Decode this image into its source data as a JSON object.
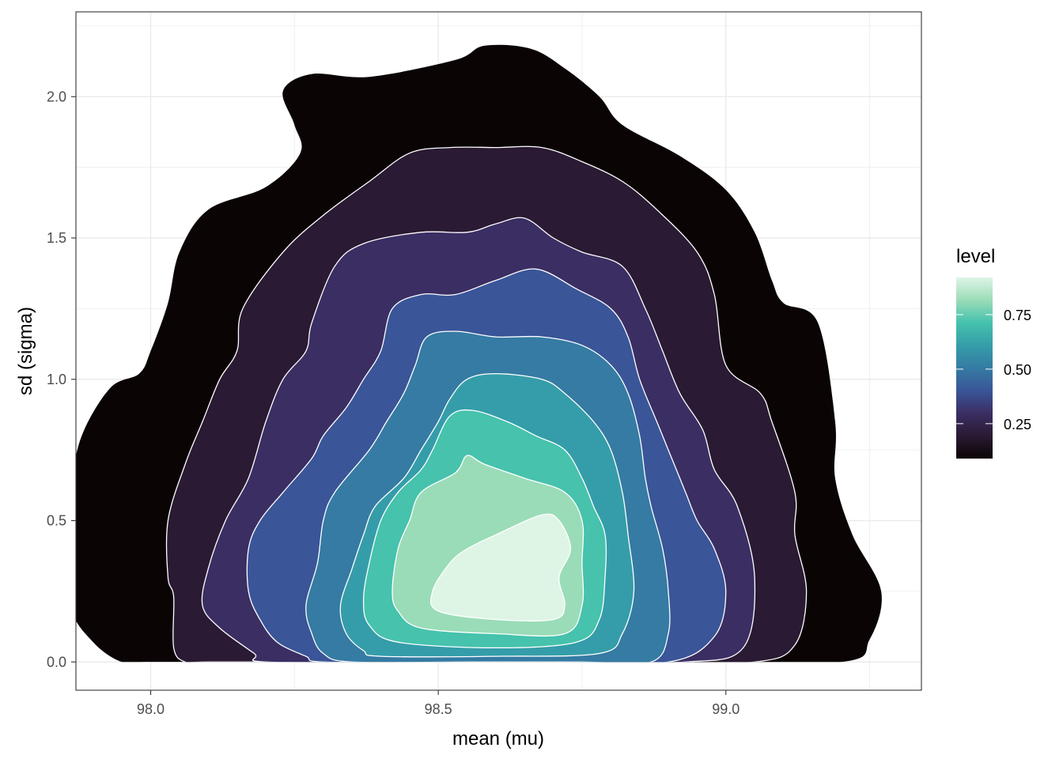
{
  "chart_data": {
    "type": "contour",
    "title": "",
    "xlabel": "mean (mu)",
    "ylabel": "sd (sigma)",
    "xlim": [
      97.87,
      99.34
    ],
    "ylim": [
      -0.1,
      2.3
    ],
    "x_ticks": [
      {
        "value": 98.0,
        "label": "98.0"
      },
      {
        "value": 98.5,
        "label": "98.5"
      },
      {
        "value": 99.0,
        "label": "99.0"
      }
    ],
    "y_ticks": [
      {
        "value": 0.0,
        "label": "0.0"
      },
      {
        "value": 0.5,
        "label": "0.5"
      },
      {
        "value": 1.0,
        "label": "1.0"
      },
      {
        "value": 1.5,
        "label": "1.5"
      },
      {
        "value": 2.0,
        "label": "2.0"
      }
    ],
    "grid": true,
    "legend": {
      "title": "level",
      "placement": "right",
      "range": [
        0.09,
        0.92
      ],
      "ticks": [
        {
          "value": 0.25,
          "label": "0.25"
        },
        {
          "value": 0.5,
          "label": "0.50"
        },
        {
          "value": 0.75,
          "label": "0.75"
        }
      ],
      "gradient_colors": [
        "#0b0405",
        "#2a1a33",
        "#3b2e63",
        "#3a5598",
        "#357ba3",
        "#359da9",
        "#46c2ad",
        "#9adcb8",
        "#def5e5"
      ]
    },
    "levels": [
      {
        "level": 0.1,
        "color": "#0b0405",
        "outline": "none",
        "points": [
          [
            98.0,
            0.0
          ],
          [
            98.3,
            0.0
          ],
          [
            98.6,
            0.0
          ],
          [
            98.9,
            0.0
          ],
          [
            99.2,
            0.0
          ],
          [
            99.25,
            0.08
          ],
          [
            99.27,
            0.25
          ],
          [
            99.22,
            0.45
          ],
          [
            99.19,
            0.65
          ],
          [
            99.19,
            0.85
          ],
          [
            99.16,
            1.2
          ],
          [
            99.1,
            1.27
          ],
          [
            99.08,
            1.35
          ],
          [
            99.05,
            1.52
          ],
          [
            99.0,
            1.67
          ],
          [
            98.92,
            1.79
          ],
          [
            98.82,
            1.9
          ],
          [
            98.78,
            2.0
          ],
          [
            98.72,
            2.1
          ],
          [
            98.66,
            2.17
          ],
          [
            98.58,
            2.18
          ],
          [
            98.53,
            2.13
          ],
          [
            98.38,
            2.07
          ],
          [
            98.28,
            2.08
          ],
          [
            98.23,
            2.02
          ],
          [
            98.25,
            1.9
          ],
          [
            98.26,
            1.8
          ],
          [
            98.2,
            1.68
          ],
          [
            98.1,
            1.6
          ],
          [
            98.05,
            1.45
          ],
          [
            98.03,
            1.27
          ],
          [
            98.0,
            1.1
          ],
          [
            97.98,
            1.02
          ],
          [
            97.93,
            0.97
          ],
          [
            97.88,
            0.8
          ],
          [
            97.86,
            0.6
          ],
          [
            97.86,
            0.45
          ],
          [
            97.86,
            0.2
          ],
          [
            97.9,
            0.07
          ],
          [
            97.95,
            0.0
          ]
        ]
      },
      {
        "level": 0.2,
        "color": "#2a1a33",
        "outline": "#ffffff",
        "points": [
          [
            98.1,
            0.0
          ],
          [
            98.35,
            0.0
          ],
          [
            98.6,
            0.0
          ],
          [
            98.85,
            0.0
          ],
          [
            99.05,
            0.0
          ],
          [
            99.12,
            0.06
          ],
          [
            99.14,
            0.25
          ],
          [
            99.12,
            0.45
          ],
          [
            99.12,
            0.6
          ],
          [
            99.08,
            0.85
          ],
          [
            99.06,
            0.95
          ],
          [
            99.0,
            1.05
          ],
          [
            98.98,
            1.3
          ],
          [
            98.95,
            1.45
          ],
          [
            98.88,
            1.6
          ],
          [
            98.82,
            1.7
          ],
          [
            98.75,
            1.77
          ],
          [
            98.68,
            1.82
          ],
          [
            98.6,
            1.82
          ],
          [
            98.52,
            1.82
          ],
          [
            98.45,
            1.8
          ],
          [
            98.38,
            1.7
          ],
          [
            98.3,
            1.58
          ],
          [
            98.23,
            1.45
          ],
          [
            98.16,
            1.25
          ],
          [
            98.15,
            1.1
          ],
          [
            98.12,
            1.0
          ],
          [
            98.09,
            0.85
          ],
          [
            98.06,
            0.7
          ],
          [
            98.03,
            0.5
          ],
          [
            98.03,
            0.3
          ],
          [
            98.04,
            0.23
          ],
          [
            98.04,
            0.05
          ],
          [
            98.06,
            0.0
          ]
        ]
      },
      {
        "level": 0.3,
        "color": "#3b2e63",
        "outline": "#ffffff",
        "points": [
          [
            98.2,
            0.0
          ],
          [
            98.45,
            0.0
          ],
          [
            98.7,
            0.0
          ],
          [
            98.93,
            0.0
          ],
          [
            99.03,
            0.05
          ],
          [
            99.05,
            0.3
          ],
          [
            99.02,
            0.55
          ],
          [
            98.98,
            0.68
          ],
          [
            98.96,
            0.82
          ],
          [
            98.92,
            0.95
          ],
          [
            98.89,
            1.1
          ],
          [
            98.86,
            1.25
          ],
          [
            98.82,
            1.4
          ],
          [
            98.75,
            1.45
          ],
          [
            98.7,
            1.5
          ],
          [
            98.65,
            1.57
          ],
          [
            98.6,
            1.55
          ],
          [
            98.55,
            1.52
          ],
          [
            98.47,
            1.52
          ],
          [
            98.37,
            1.48
          ],
          [
            98.32,
            1.4
          ],
          [
            98.28,
            1.2
          ],
          [
            98.27,
            1.1
          ],
          [
            98.23,
            1.0
          ],
          [
            98.2,
            0.85
          ],
          [
            98.17,
            0.65
          ],
          [
            98.13,
            0.5
          ],
          [
            98.1,
            0.33
          ],
          [
            98.09,
            0.2
          ],
          [
            98.12,
            0.12
          ],
          [
            98.18,
            0.03
          ]
        ]
      },
      {
        "level": 0.4,
        "color": "#3a5598",
        "outline": "#ffffff",
        "points": [
          [
            98.3,
            0.0
          ],
          [
            98.5,
            0.0
          ],
          [
            98.7,
            0.0
          ],
          [
            98.9,
            0.0
          ],
          [
            98.98,
            0.09
          ],
          [
            99.0,
            0.25
          ],
          [
            98.98,
            0.4
          ],
          [
            98.95,
            0.5
          ],
          [
            98.93,
            0.6
          ],
          [
            98.9,
            0.75
          ],
          [
            98.88,
            0.85
          ],
          [
            98.85,
            1.0
          ],
          [
            98.83,
            1.15
          ],
          [
            98.8,
            1.25
          ],
          [
            98.74,
            1.32
          ],
          [
            98.67,
            1.39
          ],
          [
            98.6,
            1.35
          ],
          [
            98.53,
            1.3
          ],
          [
            98.47,
            1.3
          ],
          [
            98.42,
            1.25
          ],
          [
            98.4,
            1.1
          ],
          [
            98.37,
            1.0
          ],
          [
            98.34,
            0.9
          ],
          [
            98.3,
            0.8
          ],
          [
            98.28,
            0.72
          ],
          [
            98.23,
            0.6
          ],
          [
            98.19,
            0.5
          ],
          [
            98.17,
            0.4
          ],
          [
            98.17,
            0.25
          ],
          [
            98.19,
            0.15
          ],
          [
            98.22,
            0.07
          ],
          [
            98.27,
            0.02
          ]
        ]
      },
      {
        "level": 0.5,
        "color": "#357ba3",
        "outline": "#ffffff",
        "points": [
          [
            98.35,
            0.0
          ],
          [
            98.55,
            0.0
          ],
          [
            98.75,
            0.0
          ],
          [
            98.87,
            0.0
          ],
          [
            98.9,
            0.1
          ],
          [
            98.9,
            0.25
          ],
          [
            98.89,
            0.4
          ],
          [
            98.87,
            0.55
          ],
          [
            98.86,
            0.65
          ],
          [
            98.85,
            0.8
          ],
          [
            98.83,
            0.95
          ],
          [
            98.8,
            1.05
          ],
          [
            98.75,
            1.12
          ],
          [
            98.68,
            1.15
          ],
          [
            98.6,
            1.15
          ],
          [
            98.53,
            1.17
          ],
          [
            98.48,
            1.15
          ],
          [
            98.46,
            1.05
          ],
          [
            98.44,
            0.95
          ],
          [
            98.41,
            0.85
          ],
          [
            98.38,
            0.75
          ],
          [
            98.32,
            0.6
          ],
          [
            98.3,
            0.5
          ],
          [
            98.29,
            0.35
          ],
          [
            98.27,
            0.2
          ],
          [
            98.28,
            0.1
          ],
          [
            98.3,
            0.03
          ]
        ]
      },
      {
        "level": 0.6,
        "color": "#359da9",
        "outline": "#ffffff",
        "points": [
          [
            98.4,
            0.02
          ],
          [
            98.6,
            0.02
          ],
          [
            98.78,
            0.03
          ],
          [
            98.82,
            0.1
          ],
          [
            98.84,
            0.25
          ],
          [
            98.83,
            0.45
          ],
          [
            98.82,
            0.6
          ],
          [
            98.8,
            0.75
          ],
          [
            98.77,
            0.85
          ],
          [
            98.72,
            0.95
          ],
          [
            98.68,
            1.0
          ],
          [
            98.6,
            1.02
          ],
          [
            98.55,
            1.0
          ],
          [
            98.52,
            0.93
          ],
          [
            98.5,
            0.85
          ],
          [
            98.47,
            0.75
          ],
          [
            98.44,
            0.65
          ],
          [
            98.39,
            0.55
          ],
          [
            98.37,
            0.45
          ],
          [
            98.35,
            0.33
          ],
          [
            98.33,
            0.2
          ],
          [
            98.34,
            0.1
          ],
          [
            98.37,
            0.04
          ]
        ]
      },
      {
        "level": 0.7,
        "color": "#46c2ad",
        "outline": "#ffffff",
        "points": [
          [
            98.43,
            0.07
          ],
          [
            98.6,
            0.05
          ],
          [
            98.74,
            0.07
          ],
          [
            98.78,
            0.15
          ],
          [
            98.79,
            0.3
          ],
          [
            98.79,
            0.45
          ],
          [
            98.77,
            0.55
          ],
          [
            98.75,
            0.65
          ],
          [
            98.72,
            0.75
          ],
          [
            98.67,
            0.8
          ],
          [
            98.62,
            0.85
          ],
          [
            98.56,
            0.89
          ],
          [
            98.52,
            0.87
          ],
          [
            98.49,
            0.75
          ],
          [
            98.47,
            0.68
          ],
          [
            98.43,
            0.6
          ],
          [
            98.4,
            0.5
          ],
          [
            98.38,
            0.35
          ],
          [
            98.37,
            0.22
          ],
          [
            98.38,
            0.13
          ]
        ]
      },
      {
        "level": 0.8,
        "color": "#9adcb8",
        "outline": "#ffffff",
        "points": [
          [
            98.47,
            0.12
          ],
          [
            98.6,
            0.1
          ],
          [
            98.72,
            0.1
          ],
          [
            98.75,
            0.2
          ],
          [
            98.75,
            0.35
          ],
          [
            98.75,
            0.5
          ],
          [
            98.72,
            0.6
          ],
          [
            98.65,
            0.65
          ],
          [
            98.58,
            0.7
          ],
          [
            98.55,
            0.73
          ],
          [
            98.53,
            0.67
          ],
          [
            98.47,
            0.6
          ],
          [
            98.45,
            0.5
          ],
          [
            98.43,
            0.4
          ],
          [
            98.42,
            0.25
          ],
          [
            98.43,
            0.18
          ]
        ]
      },
      {
        "level": 0.9,
        "color": "#def5e5",
        "outline": "#ffffff",
        "points": [
          [
            98.5,
            0.18
          ],
          [
            98.6,
            0.15
          ],
          [
            98.7,
            0.15
          ],
          [
            98.72,
            0.2
          ],
          [
            98.71,
            0.3
          ],
          [
            98.73,
            0.4
          ],
          [
            98.71,
            0.5
          ],
          [
            98.68,
            0.52
          ],
          [
            98.6,
            0.45
          ],
          [
            98.55,
            0.4
          ],
          [
            98.52,
            0.35
          ],
          [
            98.49,
            0.25
          ]
        ]
      }
    ]
  }
}
